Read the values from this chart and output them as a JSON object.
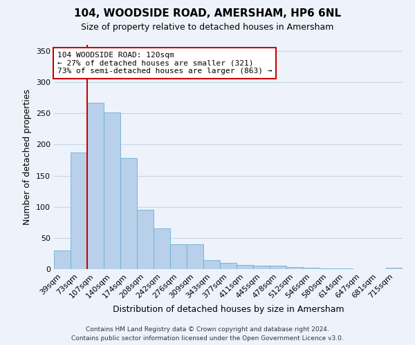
{
  "title": "104, WOODSIDE ROAD, AMERSHAM, HP6 6NL",
  "subtitle": "Size of property relative to detached houses in Amersham",
  "xlabel": "Distribution of detached houses by size in Amersham",
  "ylabel": "Number of detached properties",
  "bin_labels": [
    "39sqm",
    "73sqm",
    "107sqm",
    "140sqm",
    "174sqm",
    "208sqm",
    "242sqm",
    "276sqm",
    "309sqm",
    "343sqm",
    "377sqm",
    "411sqm",
    "445sqm",
    "478sqm",
    "512sqm",
    "546sqm",
    "580sqm",
    "614sqm",
    "647sqm",
    "681sqm",
    "715sqm"
  ],
  "bar_heights": [
    30,
    187,
    267,
    251,
    178,
    95,
    65,
    40,
    40,
    14,
    10,
    7,
    6,
    5,
    3,
    2,
    1,
    1,
    0,
    0,
    2
  ],
  "bar_color": "#b8d0ea",
  "bar_edge_color": "#6aaed6",
  "vline_color": "#cc0000",
  "vline_x_idx": 2,
  "annotation_title": "104 WOODSIDE ROAD: 120sqm",
  "annotation_line1": "← 27% of detached houses are smaller (321)",
  "annotation_line2": "73% of semi-detached houses are larger (863) →",
  "annotation_box_color": "#ffffff",
  "annotation_box_edge_color": "#cc0000",
  "ylim": [
    0,
    360
  ],
  "yticks": [
    0,
    50,
    100,
    150,
    200,
    250,
    300,
    350
  ],
  "footer_line1": "Contains HM Land Registry data © Crown copyright and database right 2024.",
  "footer_line2": "Contains public sector information licensed under the Open Government Licence v3.0.",
  "background_color": "#eef3fb",
  "grid_color": "#c5d5e8",
  "title_fontsize": 11,
  "subtitle_fontsize": 9,
  "xlabel_fontsize": 9,
  "ylabel_fontsize": 9,
  "tick_fontsize": 8,
  "footer_fontsize": 6.5,
  "annotation_fontsize": 8
}
